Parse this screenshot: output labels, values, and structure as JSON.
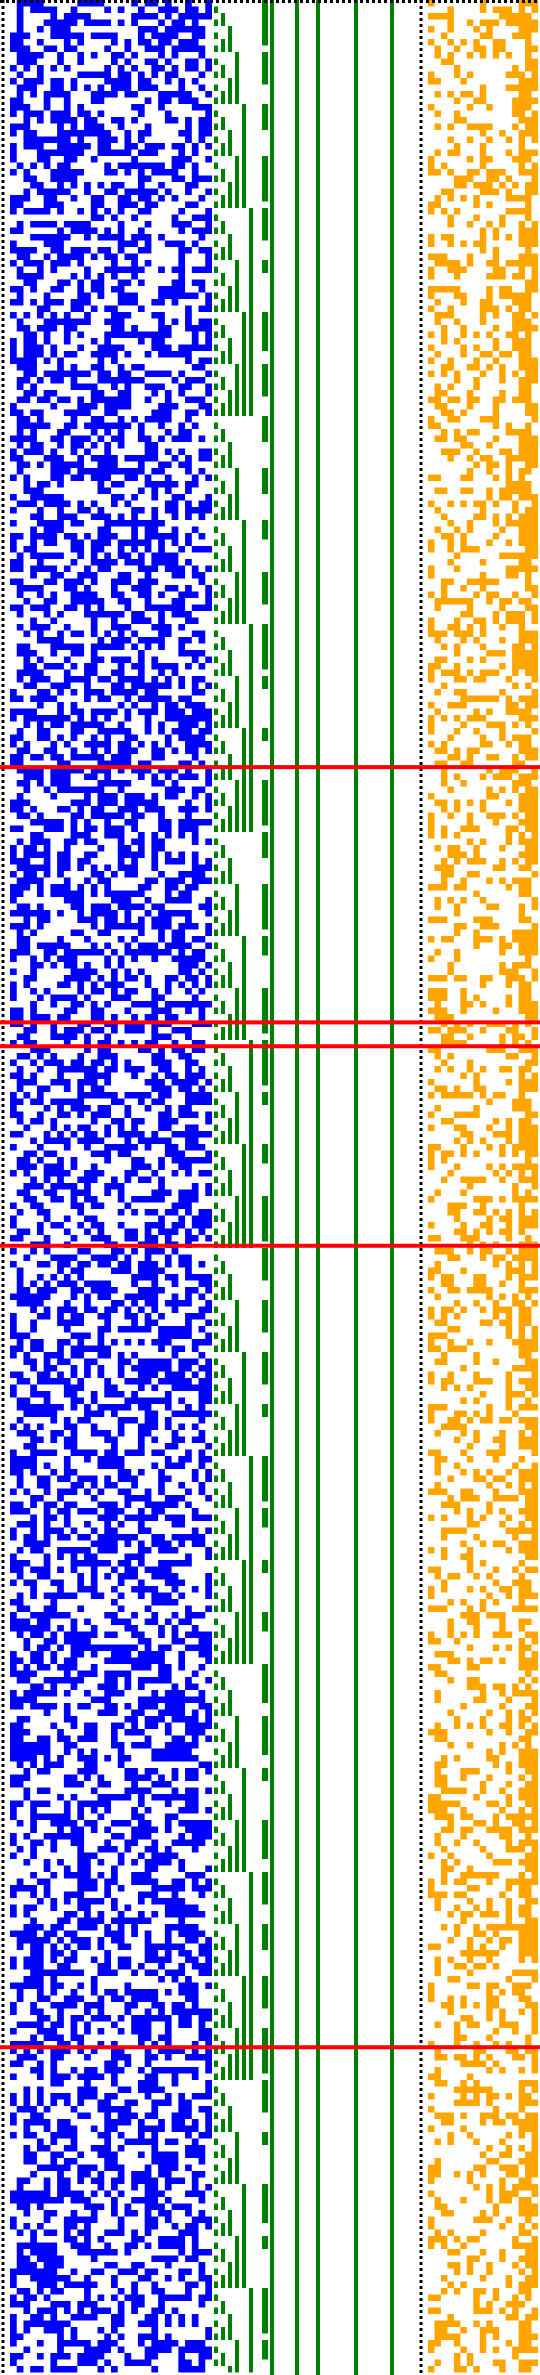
{
  "colors": {
    "background": "#ffffff",
    "bit_field": "#0000ff",
    "counter": "#008000",
    "tail": "#ffa500",
    "marker": "#ff0000",
    "frame": "#000000"
  },
  "pattern": {
    "rows": 2375,
    "bit_columns": 30,
    "bit_density": 0.5,
    "tail_columns": 17,
    "tail_density": 0.33,
    "counter_lines": 5,
    "seed": 1729
  },
  "markers": [
    {
      "row_fraction": 0.323
    },
    {
      "row_fraction": 0.4305
    },
    {
      "row_fraction": 0.4405
    },
    {
      "row_fraction": 0.5245
    },
    {
      "row_fraction": 0.862
    }
  ]
}
